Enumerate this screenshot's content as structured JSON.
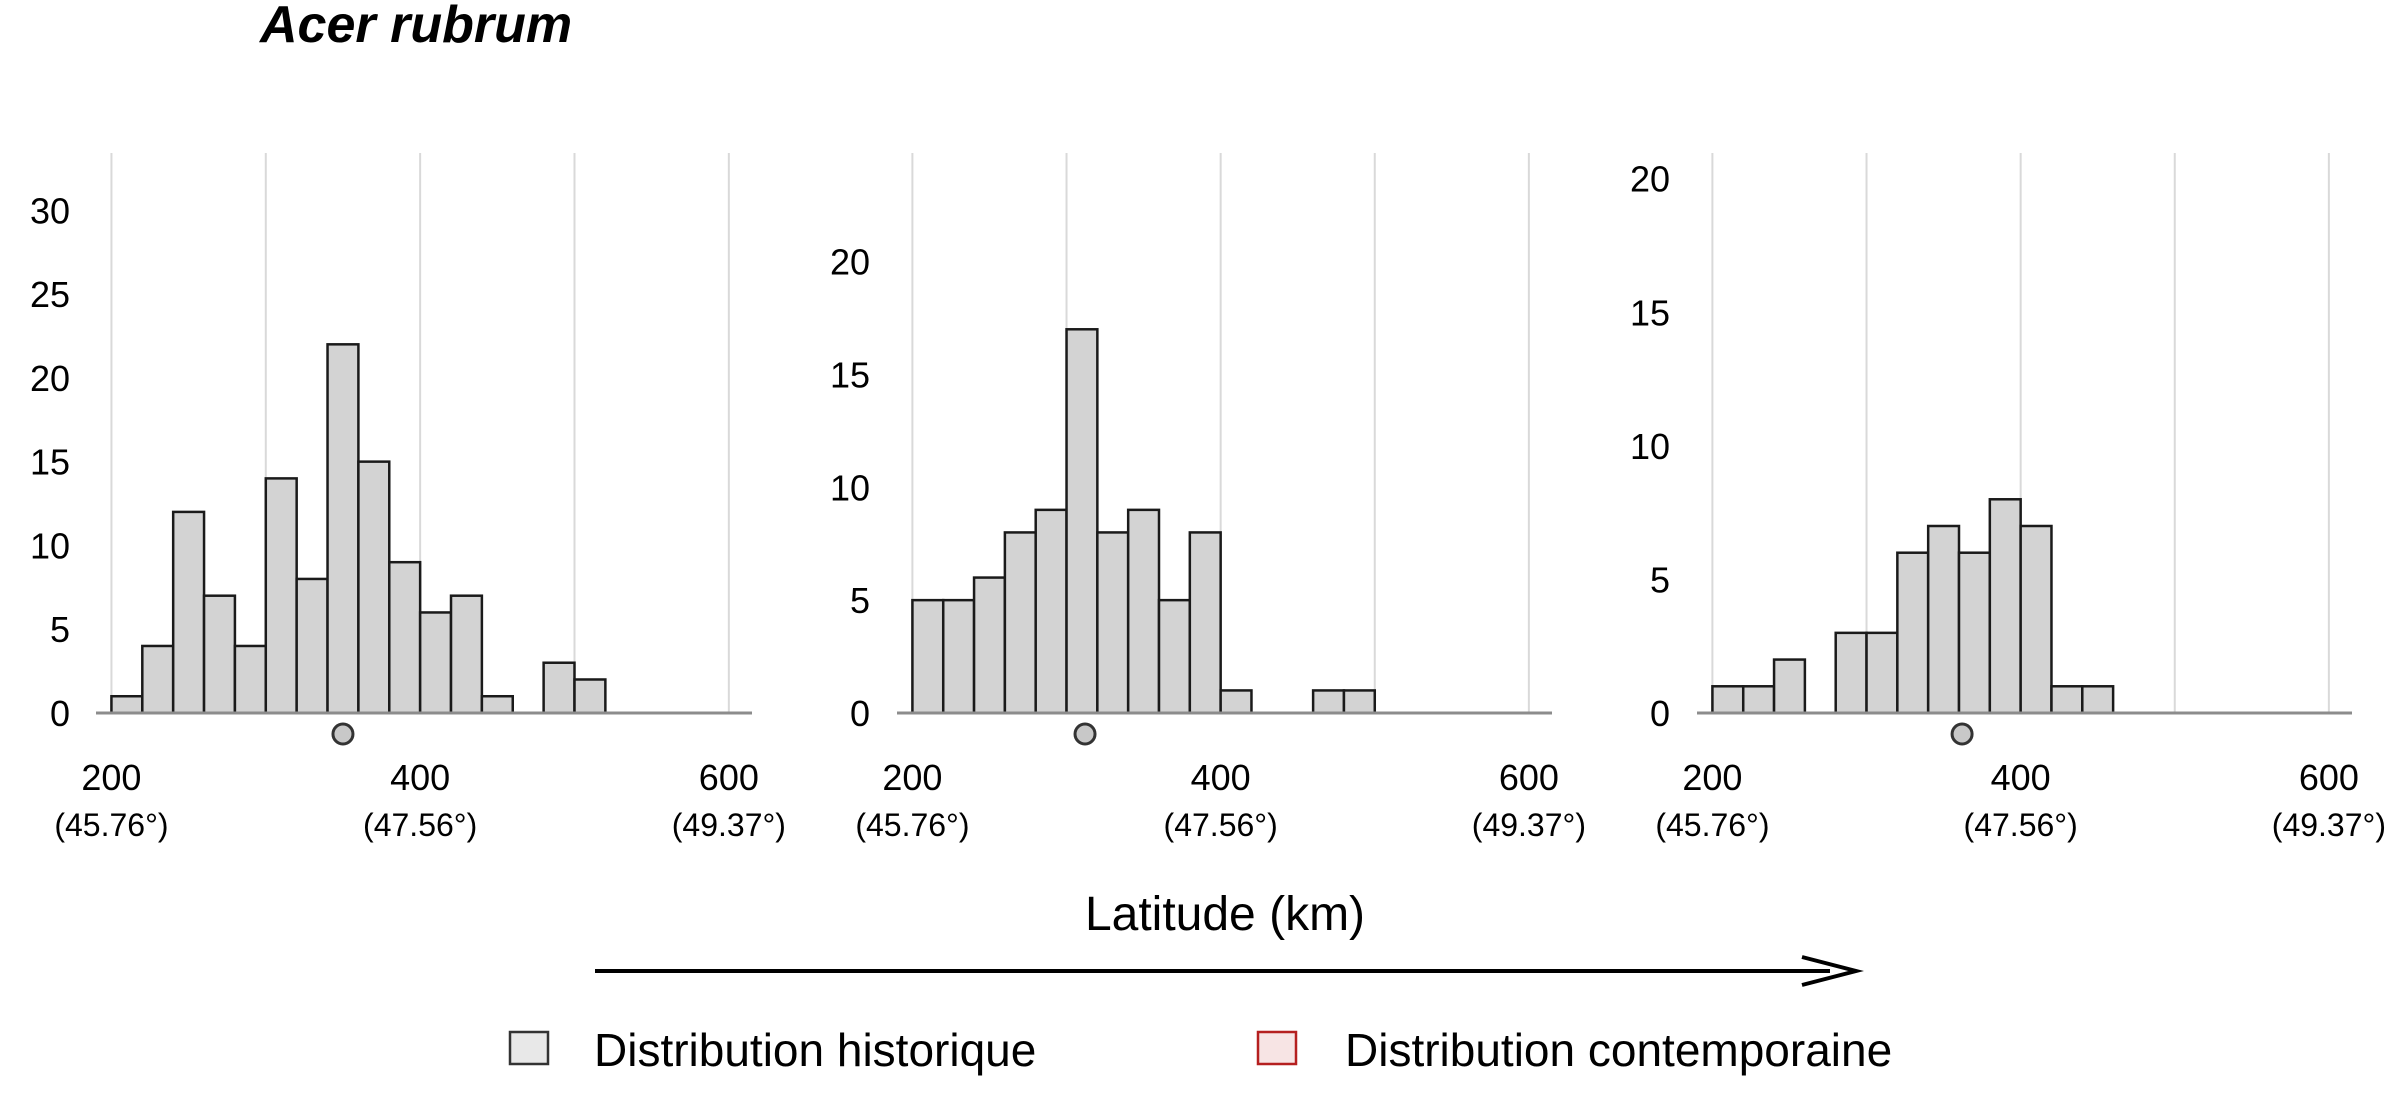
{
  "title": "Acer rubrum",
  "xlabel": "Latitude (km)",
  "legend": [
    {
      "label": "Distribution historique",
      "fill": "#e8e8e8",
      "stroke": "#333333"
    },
    {
      "label": "Distribution contemporaine",
      "fill": "#f7e4e4",
      "stroke": "#b51f1f"
    }
  ],
  "colors": {
    "bar_fill": "#d3d3d3",
    "bar_stroke": "#1a1a1a",
    "grid": "#d9d9d9",
    "axis": "#8c8c8c",
    "marker_fill": "#c8c8c8"
  },
  "chart_data": [
    {
      "type": "bar",
      "grid": true,
      "xlim": [
        190,
        615
      ],
      "ylim": [
        0,
        33
      ],
      "yticks": [
        0,
        5,
        10,
        15,
        20,
        25,
        30
      ],
      "xticks": [
        {
          "value": 200,
          "label": "200",
          "sub": "(45.76°)"
        },
        {
          "value": 400,
          "label": "400",
          "sub": "(47.56°)"
        },
        {
          "value": 600,
          "label": "600",
          "sub": "(49.37°)"
        }
      ],
      "bin_width": 20,
      "bins": [
        200,
        220,
        240,
        260,
        280,
        300,
        320,
        340,
        360,
        380,
        400,
        420,
        440,
        480,
        500
      ],
      "counts": [
        1,
        4,
        12,
        7,
        4,
        14,
        8,
        22,
        15,
        9,
        6,
        7,
        1,
        3,
        2
      ],
      "mean": 350
    },
    {
      "type": "bar",
      "grid": true,
      "xlim": [
        190,
        615
      ],
      "ylim": [
        0,
        24.5
      ],
      "yticks": [
        0,
        5,
        10,
        15,
        20
      ],
      "xticks": [
        {
          "value": 200,
          "label": "200",
          "sub": "(45.76°)"
        },
        {
          "value": 400,
          "label": "400",
          "sub": "(47.56°)"
        },
        {
          "value": 600,
          "label": "600",
          "sub": "(49.37°)"
        }
      ],
      "bin_width": 20,
      "bins": [
        200,
        220,
        240,
        260,
        280,
        300,
        320,
        340,
        360,
        380,
        400,
        460,
        480
      ],
      "counts": [
        5,
        5,
        6,
        8,
        9,
        17,
        8,
        9,
        5,
        8,
        1,
        1,
        1
      ],
      "mean": 312
    },
    {
      "type": "bar",
      "grid": true,
      "xlim": [
        190,
        615
      ],
      "ylim": [
        0,
        20.7
      ],
      "yticks": [
        0,
        5,
        10,
        15,
        20
      ],
      "xticks": [
        {
          "value": 200,
          "label": "200",
          "sub": "(45.76°)"
        },
        {
          "value": 400,
          "label": "400",
          "sub": "(47.56°)"
        },
        {
          "value": 600,
          "label": "600",
          "sub": "(49.37°)"
        }
      ],
      "bin_width": 20,
      "bins": [
        200,
        220,
        240,
        280,
        300,
        320,
        340,
        360,
        380,
        400,
        420,
        440
      ],
      "counts": [
        1,
        1,
        2,
        3,
        3,
        6,
        7,
        6,
        8,
        7,
        1,
        1
      ],
      "mean": 362
    }
  ]
}
